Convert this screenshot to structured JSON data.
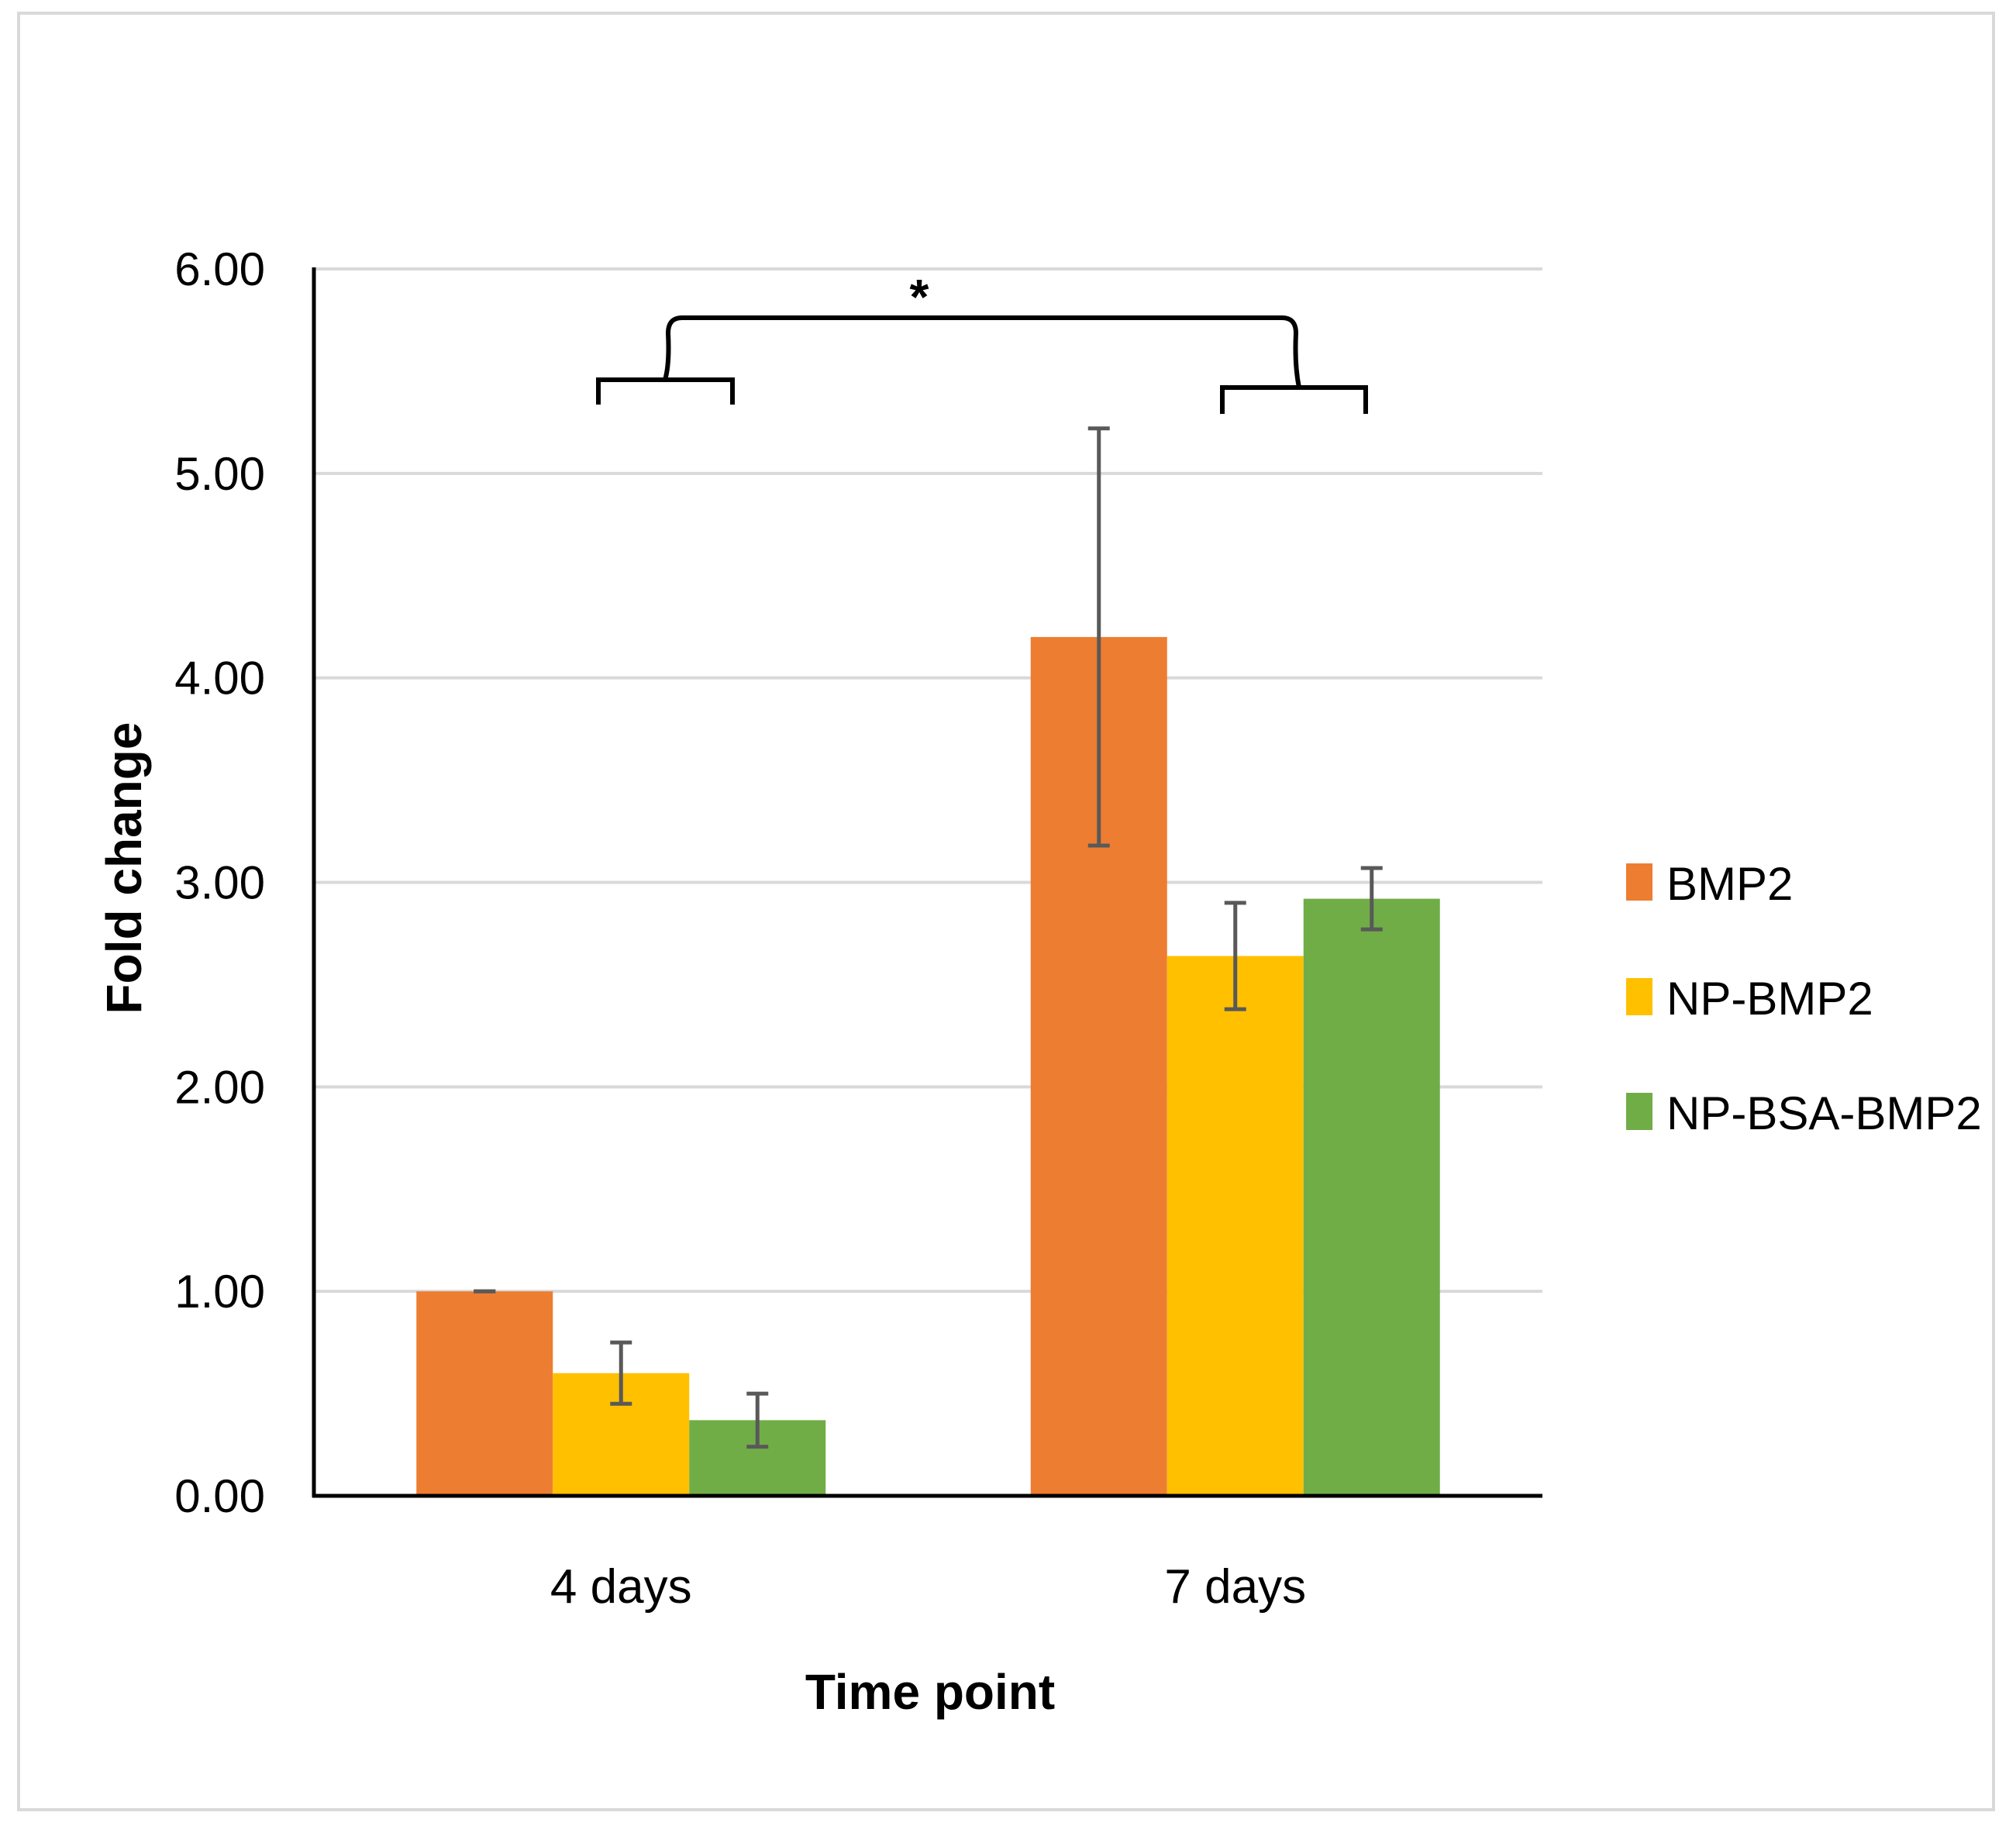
{
  "chart_data": {
    "type": "bar",
    "title": "",
    "xlabel": "Time point",
    "ylabel": "Fold change",
    "categories": [
      "4 days",
      "7 days"
    ],
    "series": [
      {
        "name": "BMP2",
        "color": "#ED7D31",
        "values": [
          1.0,
          4.2
        ],
        "errors": [
          0.0,
          1.02
        ]
      },
      {
        "name": "NP-BMP2",
        "color": "#FFC000",
        "values": [
          0.6,
          2.64
        ],
        "errors": [
          0.15,
          0.26
        ]
      },
      {
        "name": "NP-BSA-BMP2",
        "color": "#70AD47",
        "values": [
          0.37,
          2.92
        ],
        "errors": [
          0.13,
          0.15
        ]
      }
    ],
    "ylim": [
      0,
      6
    ],
    "yticks": [
      0,
      1,
      2,
      3,
      4,
      5,
      6
    ],
    "ytick_labels": [
      "0.00",
      "1.00",
      "2.00",
      "3.00",
      "4.00",
      "5.00",
      "6.00"
    ],
    "grid": true,
    "legend_position": "right",
    "annotation": {
      "text": "*",
      "meaning": "significant difference between 4 days and 7 days groups"
    }
  },
  "colors": {
    "grid": "#d9d9d9",
    "axis": "#000000",
    "error_bar": "#595959"
  }
}
